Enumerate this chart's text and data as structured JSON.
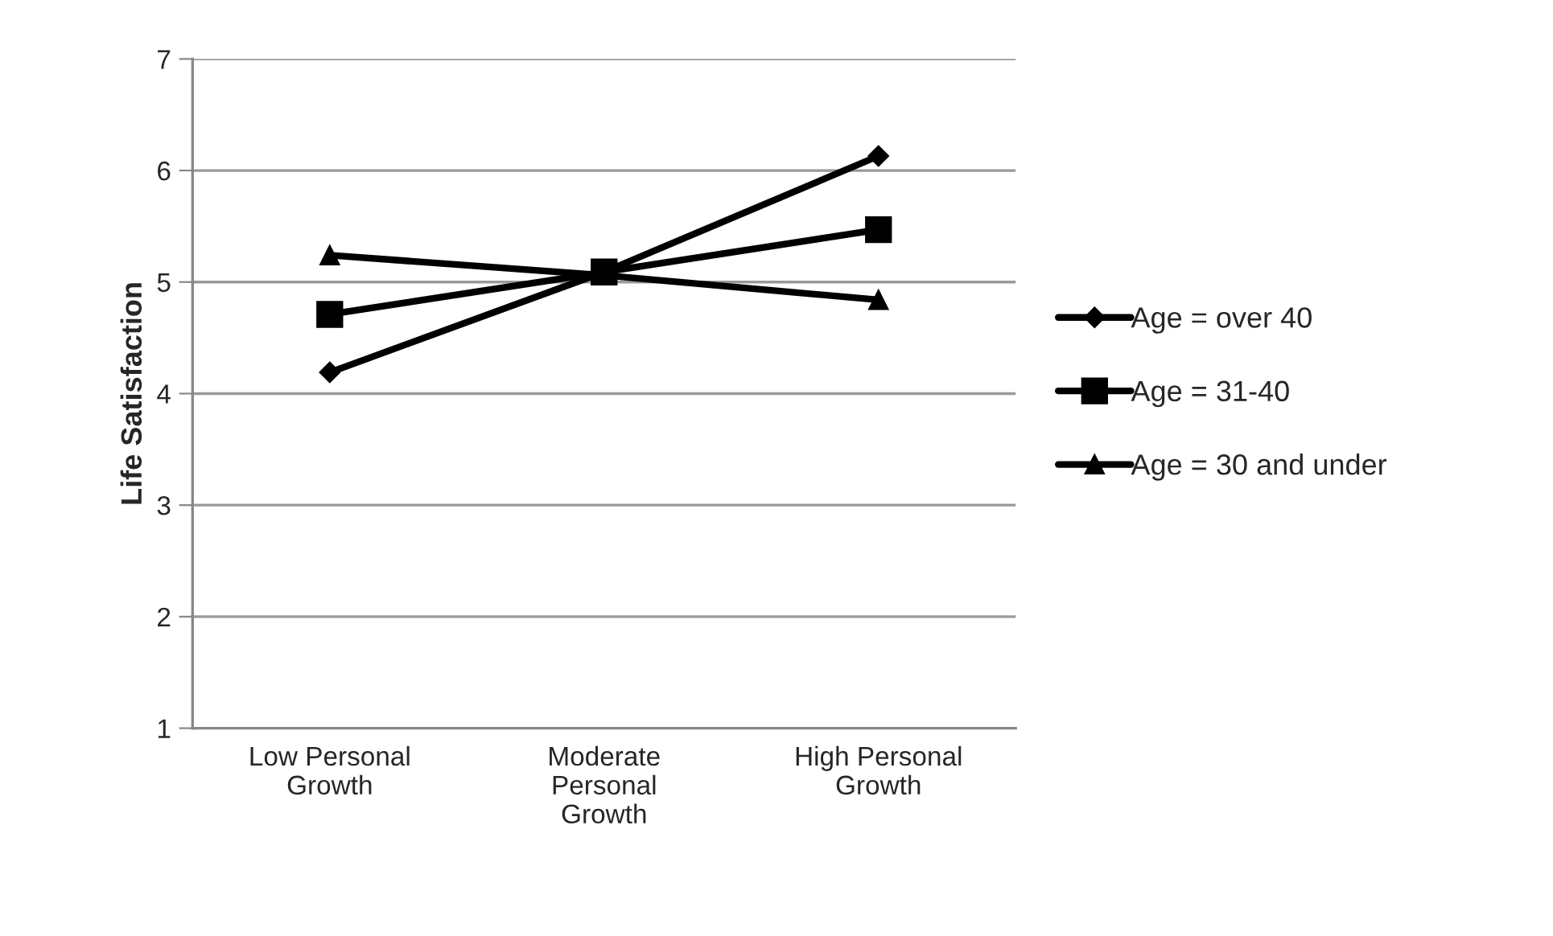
{
  "chart_data": {
    "type": "line",
    "ylabel": "Life Satisfaction",
    "categories": [
      "Low Personal\nGrowth",
      "Moderate\nPersonal\nGrowth",
      "High Personal\nGrowth"
    ],
    "series": [
      {
        "name": "Age = over 40",
        "color": "#000000",
        "marker": "diamond",
        "values": [
          4.19,
          5.09,
          6.13
        ]
      },
      {
        "name": "Age = 31-40",
        "color": "#000000",
        "marker": "square",
        "values": [
          4.71,
          5.09,
          5.47
        ]
      },
      {
        "name": "Age = 30 and under",
        "color": "#000000",
        "marker": "triangle",
        "values": [
          5.24,
          5.06,
          4.84
        ]
      }
    ],
    "ylim": [
      1,
      7
    ],
    "yticks": [
      1,
      2,
      3,
      4,
      5,
      6,
      7
    ],
    "grid": "y",
    "legend": "right",
    "line_style": "solid"
  }
}
